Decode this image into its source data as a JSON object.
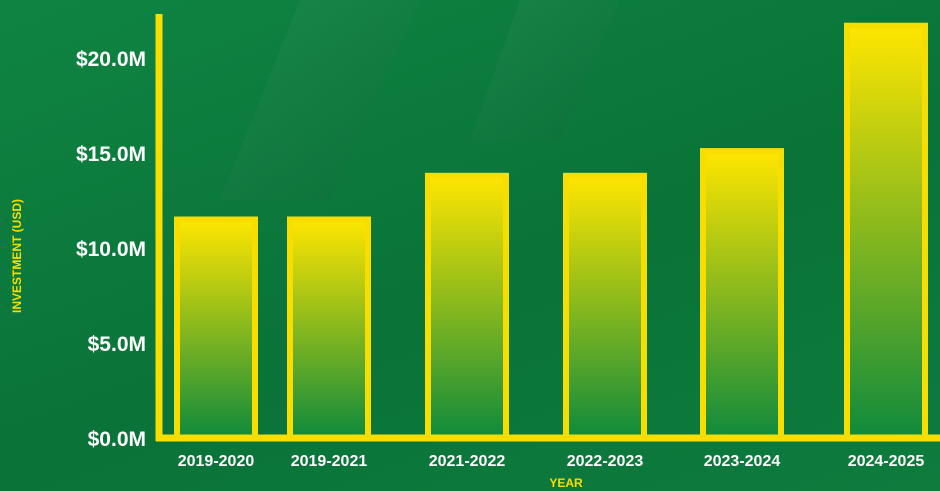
{
  "chart_data": {
    "type": "bar",
    "categories": [
      "2019-2020",
      "2019-2021",
      "2021-2022",
      "2022-2023",
      "2023-2024",
      "2024-2025"
    ],
    "values": [
      11.5,
      11.5,
      13.8,
      13.8,
      15.1,
      21.7
    ],
    "title": "",
    "xlabel": "YEAR",
    "ylabel": "INVESTMENT (USD)",
    "ylim": [
      0,
      22
    ],
    "yticks": [
      0,
      5,
      10,
      15,
      20
    ],
    "ytick_labels": [
      "$0.0M",
      "$5.0M",
      "$10.0M",
      "$15.0M",
      "$20.0M"
    ],
    "grid": false,
    "legend": "none"
  },
  "colors": {
    "background": "#0b7a3a",
    "axis": "#f7de00",
    "bar_top": "#ffe600",
    "bar_bottom": "#0f8a3c",
    "bar_outline": "#f7de00",
    "text": "#ffffff"
  }
}
